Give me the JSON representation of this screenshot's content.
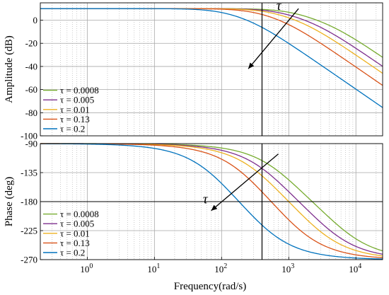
{
  "chart_data": [
    {
      "type": "line",
      "ylabel": "Amplitude (dB)",
      "xscale": "log",
      "xlim": [
        0.2,
        25000
      ],
      "ylim": [
        -100,
        15
      ],
      "yticks": [
        "0",
        "-20",
        "-40",
        "-60",
        "-80",
        "-100"
      ],
      "yticks_values": [
        0,
        -20,
        -40,
        -60,
        -80,
        -100
      ],
      "grid": true,
      "legend_position": "bottom-left",
      "annotation": {
        "label": "τ",
        "arrow_from": [
          1400,
          10
        ],
        "arrow_to": [
          250,
          -42
        ]
      },
      "vertical_marker": 400,
      "series": [
        {
          "name": "τ = 0.0008",
          "color": "#77ac30"
        },
        {
          "name": "τ = 0.005",
          "color": "#7e2f8e"
        },
        {
          "name": "τ = 0.01",
          "color": "#edb120"
        },
        {
          "name": "τ = 0.13",
          "color": "#d95319"
        },
        {
          "name": "τ = 0.2",
          "color": "#0072bd"
        }
      ]
    },
    {
      "type": "line",
      "ylabel": "Phase (deg)",
      "xlabel": "Frequency(rad/s)",
      "xscale": "log",
      "xlim": [
        0.2,
        25000
      ],
      "ylim": [
        -270,
        -90
      ],
      "xticks": [
        "10^0",
        "10^1",
        "10^2",
        "10^3",
        "10^4"
      ],
      "xticks_values": [
        1,
        10,
        100,
        1000,
        10000
      ],
      "yticks": [
        "-90",
        "-135",
        "-180",
        "-225",
        "-270"
      ],
      "yticks_values": [
        -90,
        -135,
        -180,
        -225,
        -270
      ],
      "grid": true,
      "legend_position": "bottom-left",
      "annotation": {
        "label": "τ",
        "arrow_from": [
          700,
          -106
        ],
        "arrow_to": [
          70,
          -194
        ]
      },
      "vertical_marker": 400,
      "horizontal_marker": -180,
      "series": [
        {
          "name": "τ = 0.0008",
          "color": "#77ac30"
        },
        {
          "name": "τ = 0.005",
          "color": "#7e2f8e"
        },
        {
          "name": "τ = 0.01",
          "color": "#edb120"
        },
        {
          "name": "τ = 0.13",
          "color": "#d95319"
        },
        {
          "name": "τ = 0.2",
          "color": "#0072bd"
        }
      ]
    }
  ],
  "model": {
    "gain_db": 10,
    "pole_a": [
      1000,
      670,
      500,
      300,
      100
    ],
    "pole_b": [
      5000,
      3000,
      2000,
      1000,
      330
    ]
  }
}
